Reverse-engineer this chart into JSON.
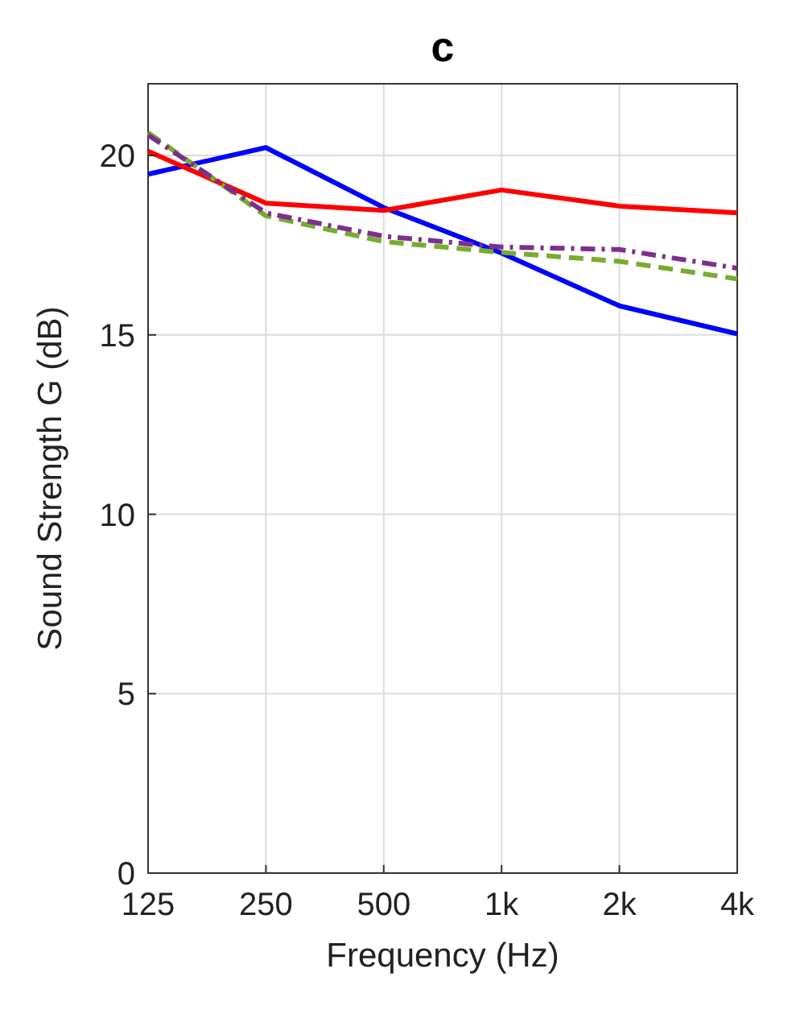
{
  "chart_data": {
    "type": "line",
    "title": "c",
    "xlabel": "Frequency (Hz)",
    "ylabel": "Sound Strength G (dB)",
    "categories": [
      "125",
      "250",
      "500",
      "1k",
      "2k",
      "4k"
    ],
    "ylim": [
      0,
      22
    ],
    "yticks": [
      0,
      5,
      10,
      15,
      20
    ],
    "grid": true,
    "series": [
      {
        "color": "#0000ff",
        "values": [
          19.48,
          20.22,
          18.55,
          17.28,
          15.81,
          15.03
        ],
        "line_style": "solid"
      },
      {
        "color": "#ff0000",
        "values": [
          20.12,
          18.67,
          18.47,
          19.04,
          18.59,
          18.4
        ],
        "line_style": "solid"
      },
      {
        "color": "#77ac30",
        "values": [
          20.64,
          18.32,
          17.6,
          17.3,
          17.05,
          16.56
        ],
        "line_style": "dashed"
      },
      {
        "color": "#7e2f8e",
        "values": [
          20.57,
          18.4,
          17.75,
          17.45,
          17.38,
          16.86
        ],
        "line_style": "dashdot"
      }
    ]
  }
}
